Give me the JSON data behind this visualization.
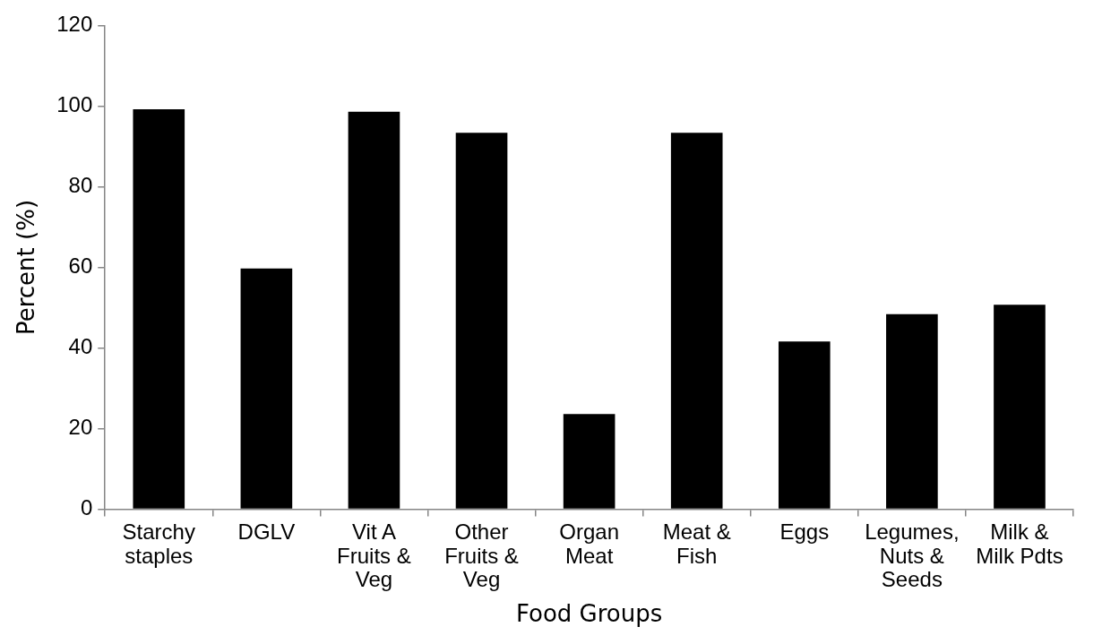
{
  "chart_data": {
    "type": "bar",
    "xlabel": "Food Groups",
    "ylabel": "Percent (%)",
    "categories": [
      "Starchy staples",
      "DGLV",
      "Vit A Fruits & Veg",
      "Other Fruits & Veg",
      "Organ Meat",
      "Meat & Fish",
      "Eggs",
      "Legumes, Nuts & Seeds",
      "Milk & Milk Pdts"
    ],
    "values": [
      99.2,
      59.7,
      98.6,
      93.4,
      23.6,
      93.4,
      41.6,
      48.4,
      50.7
    ],
    "color": "#000000",
    "ylim": [
      0,
      120
    ],
    "yticks": [
      0,
      20,
      40,
      60,
      80,
      100,
      120
    ],
    "grid": false,
    "legend": false
  }
}
